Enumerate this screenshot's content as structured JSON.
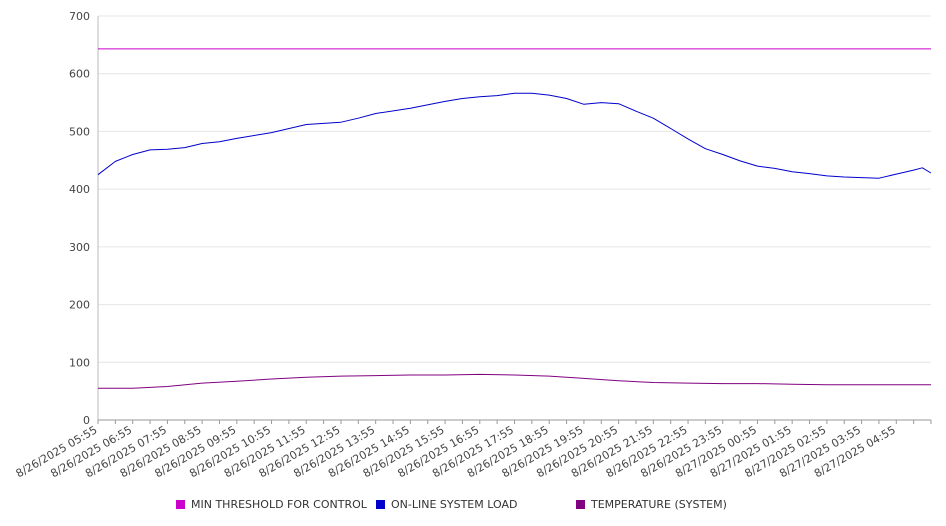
{
  "chart_data": {
    "type": "line",
    "title": "",
    "xlabel": "",
    "ylabel": "",
    "ylim": [
      0,
      700
    ],
    "yticks": [
      "0",
      "100",
      "200",
      "300",
      "400",
      "500",
      "600",
      "700"
    ],
    "grid": true,
    "legend_position": "bottom",
    "x_tick_labels": [
      "8/26/2025 05:55",
      "8/26/2025 06:55",
      "8/26/2025 07:55",
      "8/26/2025 08:55",
      "8/26/2025 09:55",
      "8/26/2025 10:55",
      "8/26/2025 11:55",
      "8/26/2025 12:55",
      "8/26/2025 13:55",
      "8/26/2025 14:55",
      "8/26/2025 15:55",
      "8/26/2025 16:55",
      "8/26/2025 17:55",
      "8/26/2025 18:55",
      "8/26/2025 19:55",
      "8/26/2025 20:55",
      "8/26/2025 21:55",
      "8/26/2025 22:55",
      "8/26/2025 23:55",
      "8/27/2025 00:55",
      "8/27/2025 01:55",
      "8/27/2025 02:55",
      "8/27/2025 03:55",
      "8/27/2025 04:55"
    ],
    "x_end": "8/27/2025 05:55",
    "series": [
      {
        "name": "MIN THRESHOLD FOR CONTROL",
        "color": "#cc00cc",
        "points": [
          [
            "8/26/2025 05:55",
            643
          ],
          [
            "8/27/2025 05:55",
            643
          ]
        ]
      },
      {
        "name": "ON-LINE SYSTEM LOAD",
        "color": "#0000cc",
        "points": [
          [
            "8/26/2025 05:55",
            425
          ],
          [
            "8/26/2025 06:25",
            448
          ],
          [
            "8/26/2025 06:55",
            460
          ],
          [
            "8/26/2025 07:25",
            468
          ],
          [
            "8/26/2025 07:55",
            469
          ],
          [
            "8/26/2025 08:25",
            472
          ],
          [
            "8/26/2025 08:55",
            479
          ],
          [
            "8/26/2025 09:25",
            482
          ],
          [
            "8/26/2025 09:55",
            488
          ],
          [
            "8/26/2025 10:55",
            498
          ],
          [
            "8/26/2025 11:55",
            512
          ],
          [
            "8/26/2025 12:55",
            516
          ],
          [
            "8/26/2025 13:25",
            523
          ],
          [
            "8/26/2025 13:55",
            531
          ],
          [
            "8/26/2025 14:55",
            540
          ],
          [
            "8/26/2025 15:55",
            552
          ],
          [
            "8/26/2025 16:25",
            557
          ],
          [
            "8/26/2025 16:55",
            560
          ],
          [
            "8/26/2025 17:25",
            562
          ],
          [
            "8/26/2025 17:55",
            566
          ],
          [
            "8/26/2025 18:25",
            566
          ],
          [
            "8/26/2025 18:55",
            563
          ],
          [
            "8/26/2025 19:25",
            557
          ],
          [
            "8/26/2025 19:55",
            547
          ],
          [
            "8/26/2025 20:25",
            550
          ],
          [
            "8/26/2025 20:55",
            548
          ],
          [
            "8/26/2025 21:25",
            535
          ],
          [
            "8/26/2025 21:55",
            523
          ],
          [
            "8/26/2025 22:25",
            505
          ],
          [
            "8/26/2025 22:55",
            487
          ],
          [
            "8/26/2025 23:25",
            470
          ],
          [
            "8/26/2025 23:55",
            460
          ],
          [
            "8/27/2025 00:25",
            449
          ],
          [
            "8/27/2025 00:55",
            440
          ],
          [
            "8/27/2025 01:25",
            436
          ],
          [
            "8/27/2025 01:55",
            430
          ],
          [
            "8/27/2025 02:25",
            427
          ],
          [
            "8/27/2025 02:55",
            423
          ],
          [
            "8/27/2025 03:25",
            421
          ],
          [
            "8/27/2025 03:55",
            420
          ],
          [
            "8/27/2025 04:25",
            419
          ],
          [
            "8/27/2025 04:55",
            426
          ],
          [
            "8/27/2025 05:25",
            433
          ],
          [
            "8/27/2025 05:40",
            437
          ],
          [
            "8/27/2025 05:55",
            428
          ]
        ]
      },
      {
        "name": "TEMPERATURE (SYSTEM)",
        "color": "#800080",
        "points": [
          [
            "8/26/2025 05:55",
            55
          ],
          [
            "8/26/2025 06:55",
            55
          ],
          [
            "8/26/2025 07:55",
            58
          ],
          [
            "8/26/2025 08:55",
            64
          ],
          [
            "8/26/2025 09:55",
            67
          ],
          [
            "8/26/2025 10:55",
            71
          ],
          [
            "8/26/2025 11:55",
            74
          ],
          [
            "8/26/2025 12:55",
            76
          ],
          [
            "8/26/2025 13:55",
            77
          ],
          [
            "8/26/2025 14:55",
            78
          ],
          [
            "8/26/2025 15:55",
            78
          ],
          [
            "8/26/2025 16:55",
            79
          ],
          [
            "8/26/2025 17:55",
            78
          ],
          [
            "8/26/2025 18:55",
            76
          ],
          [
            "8/26/2025 19:55",
            72
          ],
          [
            "8/26/2025 20:55",
            68
          ],
          [
            "8/26/2025 21:55",
            65
          ],
          [
            "8/26/2025 22:55",
            64
          ],
          [
            "8/26/2025 23:55",
            63
          ],
          [
            "8/27/2025 00:55",
            63
          ],
          [
            "8/27/2025 01:55",
            62
          ],
          [
            "8/27/2025 02:55",
            61
          ],
          [
            "8/27/2025 03:55",
            61
          ],
          [
            "8/27/2025 04:55",
            61
          ],
          [
            "8/27/2025 05:55",
            61
          ]
        ]
      }
    ]
  }
}
